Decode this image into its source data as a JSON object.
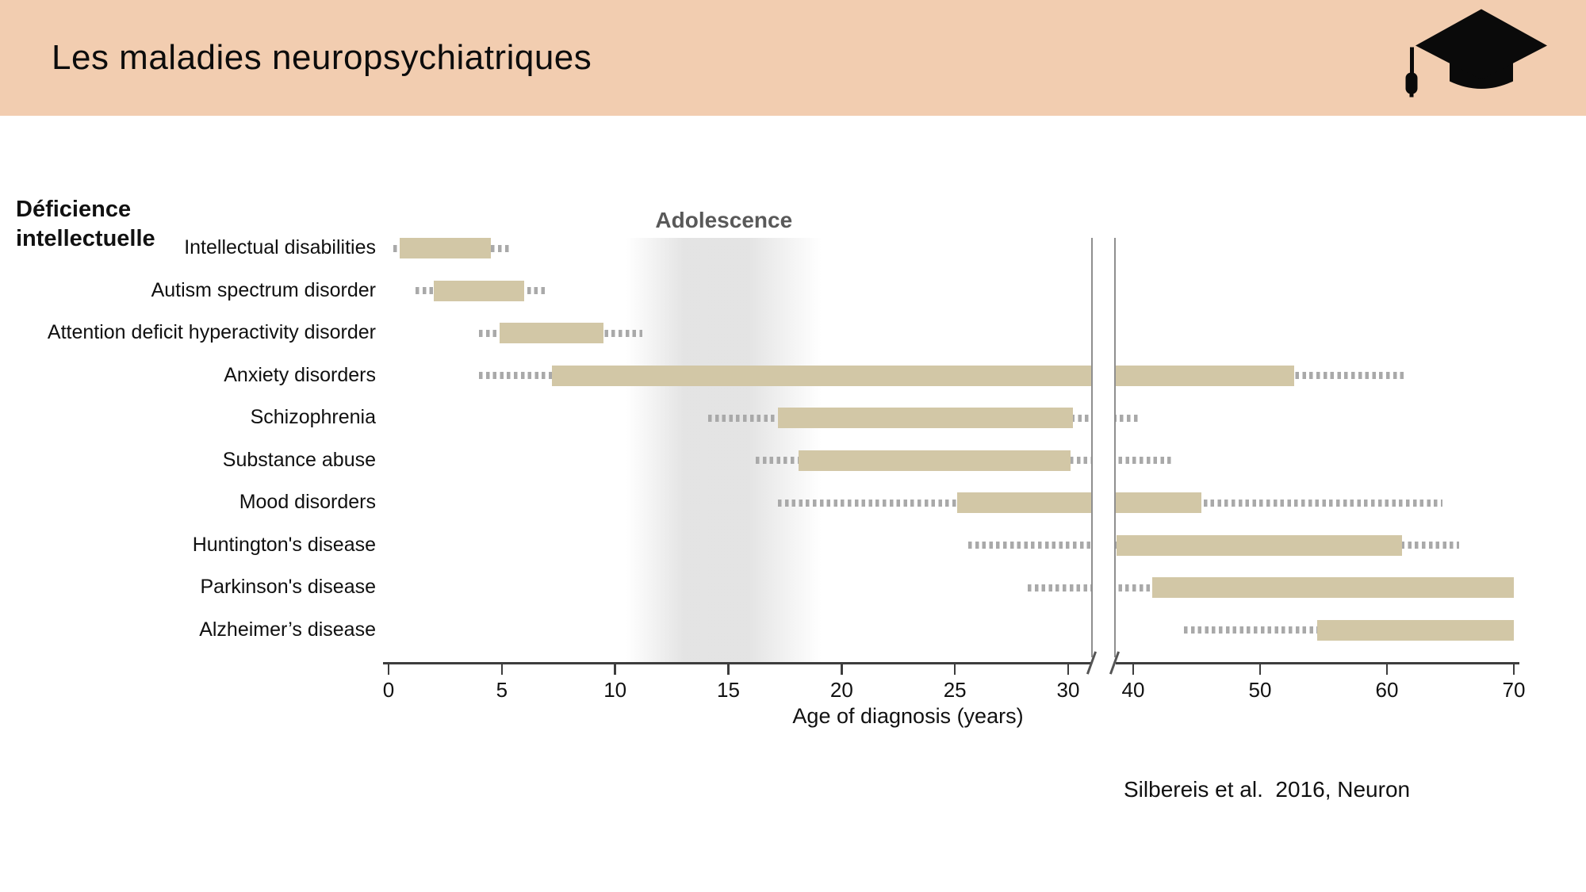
{
  "header": {
    "title": "Les maladies neuropsychiatriques",
    "background_color": "#f2cdb0",
    "icon": "graduation-cap-icon"
  },
  "left_annotation": {
    "line1": "Déficience",
    "line2": "intellectuelle"
  },
  "citation": "Silbereis et al.  2016, Neuron",
  "chart_data": {
    "type": "bar",
    "orientation": "horizontal-range",
    "title": "",
    "xlabel": "Age of diagnosis (years)",
    "axis_ticks": [
      0,
      5,
      10,
      15,
      20,
      25,
      30,
      40,
      50,
      60,
      70
    ],
    "axis_break_between": [
      31,
      38.65
    ],
    "axis_range": [
      0,
      70
    ],
    "band": {
      "label": "Adolescence",
      "from": 10.5,
      "to": 19.1
    },
    "bar_color": "#d2c7a6",
    "dot_color": "#a9a9a9",
    "categories": [
      "Intellectual disabilities",
      "Autism spectrum disorder",
      "Attention deficit hyperactivity disorder",
      "Anxiety disorders",
      "Schizophrenia",
      "Substance abuse",
      "Mood disorders",
      "Huntington's disease",
      "Parkinson's disease",
      "Alzheimer’s disease"
    ],
    "series": [
      {
        "name": "typical-diagnosis-range-solid",
        "ranges": [
          [
            0.5,
            4.5
          ],
          [
            2,
            6
          ],
          [
            4.9,
            9.5
          ],
          [
            7.2,
            52.7
          ],
          [
            17.2,
            30.2
          ],
          [
            18.1,
            30.1
          ],
          [
            25.1,
            45.4
          ],
          [
            38.7,
            61.2
          ],
          [
            41.5,
            70
          ],
          [
            54.5,
            70
          ]
        ]
      },
      {
        "name": "extended-range-dotted",
        "ranges": [
          [
            0.2,
            5.4
          ],
          [
            1.2,
            6.9
          ],
          [
            4,
            11.2
          ],
          [
            4,
            61.3
          ],
          [
            14.1,
            40.4
          ],
          [
            16.2,
            43
          ],
          [
            17.2,
            64.4
          ],
          [
            25.6,
            65.7
          ],
          [
            28.2,
            41.5
          ],
          [
            44,
            54.5
          ]
        ]
      }
    ]
  }
}
